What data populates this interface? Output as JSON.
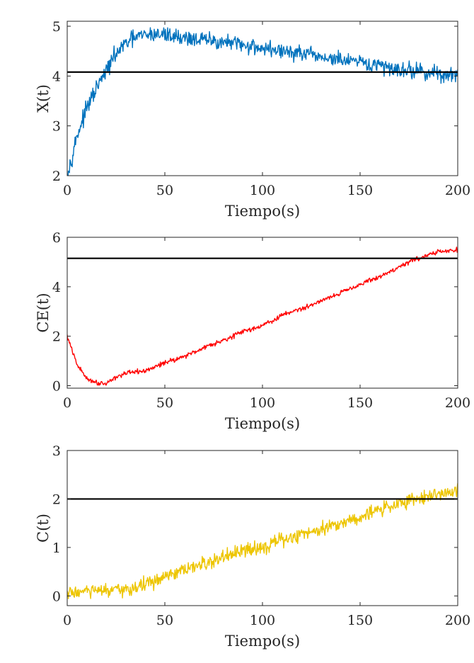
{
  "chart_data": [
    {
      "type": "line",
      "title": "",
      "xlabel": "Tiempo(s)",
      "ylabel": "X(t)",
      "xlim": [
        0,
        200
      ],
      "ylim": [
        2,
        5.1
      ],
      "xticks": [
        0,
        50,
        100,
        150,
        200
      ],
      "xtick_labels": [
        "0",
        "50",
        "100",
        "150",
        "200"
      ],
      "yticks": [
        2,
        3,
        4,
        5
      ],
      "ytick_labels": [
        "2",
        "3",
        "4",
        "5"
      ],
      "grid": false,
      "series": [
        {
          "color": "#0072BD",
          "noise_amplitude": 0.12,
          "x": [
            0,
            5,
            10,
            15,
            20,
            25,
            30,
            35,
            40,
            45,
            50,
            55,
            60,
            65,
            70,
            75,
            80,
            85,
            90,
            95,
            100,
            105,
            110,
            115,
            120,
            125,
            130,
            135,
            140,
            145,
            150,
            155,
            160,
            165,
            170,
            175,
            180,
            185,
            190,
            195,
            200
          ],
          "y": [
            2.0,
            2.8,
            3.35,
            3.75,
            4.1,
            4.45,
            4.65,
            4.78,
            4.82,
            4.84,
            4.83,
            4.8,
            4.77,
            4.75,
            4.72,
            4.7,
            4.68,
            4.65,
            4.62,
            4.6,
            4.56,
            4.53,
            4.5,
            4.47,
            4.45,
            4.41,
            4.38,
            4.35,
            4.32,
            4.29,
            4.26,
            4.23,
            4.2,
            4.17,
            4.14,
            4.12,
            4.1,
            4.07,
            4.04,
            4.02,
            4.0
          ]
        },
        {
          "color": "#000000",
          "x": [
            0,
            200
          ],
          "y": [
            4.08,
            4.08
          ]
        }
      ]
    },
    {
      "type": "line",
      "title": "",
      "xlabel": "Tiempo(s)",
      "ylabel": "CE(t)",
      "xlim": [
        0,
        200
      ],
      "ylim": [
        -0.1,
        6
      ],
      "xticks": [
        0,
        50,
        100,
        150,
        200
      ],
      "xtick_labels": [
        "0",
        "50",
        "100",
        "150",
        "200"
      ],
      "yticks": [
        0,
        2,
        4,
        6
      ],
      "ytick_labels": [
        "0",
        "2",
        "4",
        "6"
      ],
      "grid": false,
      "series": [
        {
          "color": "#FF0000",
          "noise_amplitude": 0.07,
          "x": [
            0,
            5,
            10,
            15,
            20,
            25,
            30,
            35,
            40,
            45,
            50,
            55,
            60,
            65,
            70,
            75,
            80,
            85,
            90,
            95,
            100,
            105,
            110,
            115,
            120,
            125,
            130,
            135,
            140,
            145,
            150,
            155,
            160,
            165,
            170,
            175,
            180,
            185,
            190,
            195,
            200
          ],
          "y": [
            2.0,
            0.85,
            0.3,
            0.12,
            0.1,
            0.35,
            0.5,
            0.55,
            0.6,
            0.75,
            0.95,
            1.05,
            1.2,
            1.35,
            1.55,
            1.7,
            1.85,
            2.0,
            2.2,
            2.3,
            2.45,
            2.6,
            2.85,
            3.0,
            3.1,
            3.25,
            3.45,
            3.6,
            3.75,
            3.95,
            4.1,
            4.25,
            4.4,
            4.6,
            4.8,
            5.0,
            5.15,
            5.3,
            5.4,
            5.45,
            5.5
          ]
        },
        {
          "color": "#000000",
          "x": [
            0,
            200
          ],
          "y": [
            5.15,
            5.15
          ]
        }
      ]
    },
    {
      "type": "line",
      "title": "",
      "xlabel": "Tiempo(s)",
      "ylabel": "C(t)",
      "xlim": [
        0,
        200
      ],
      "ylim": [
        -0.2,
        3
      ],
      "xticks": [
        0,
        50,
        100,
        150,
        200
      ],
      "xtick_labels": [
        "0",
        "50",
        "100",
        "150",
        "200"
      ],
      "yticks": [
        0,
        1,
        2,
        3
      ],
      "ytick_labels": [
        "0",
        "1",
        "2",
        "3"
      ],
      "grid": false,
      "series": [
        {
          "color": "#EDC500",
          "noise_amplitude": 0.11,
          "x": [
            0,
            5,
            10,
            15,
            20,
            25,
            30,
            35,
            40,
            45,
            50,
            55,
            60,
            65,
            70,
            75,
            80,
            85,
            90,
            95,
            100,
            105,
            110,
            115,
            120,
            125,
            130,
            135,
            140,
            145,
            150,
            155,
            160,
            165,
            170,
            175,
            180,
            185,
            190,
            195,
            200
          ],
          "y": [
            0.05,
            0.08,
            0.1,
            0.1,
            0.1,
            0.1,
            0.12,
            0.18,
            0.25,
            0.3,
            0.38,
            0.45,
            0.52,
            0.6,
            0.65,
            0.72,
            0.8,
            0.85,
            0.92,
            0.97,
            1.02,
            1.08,
            1.15,
            1.2,
            1.27,
            1.33,
            1.4,
            1.45,
            1.5,
            1.57,
            1.63,
            1.7,
            1.78,
            1.85,
            1.9,
            1.97,
            2.02,
            2.07,
            2.1,
            2.12,
            2.15
          ]
        },
        {
          "color": "#000000",
          "x": [
            0,
            200
          ],
          "y": [
            2.0,
            2.0
          ]
        }
      ]
    }
  ]
}
